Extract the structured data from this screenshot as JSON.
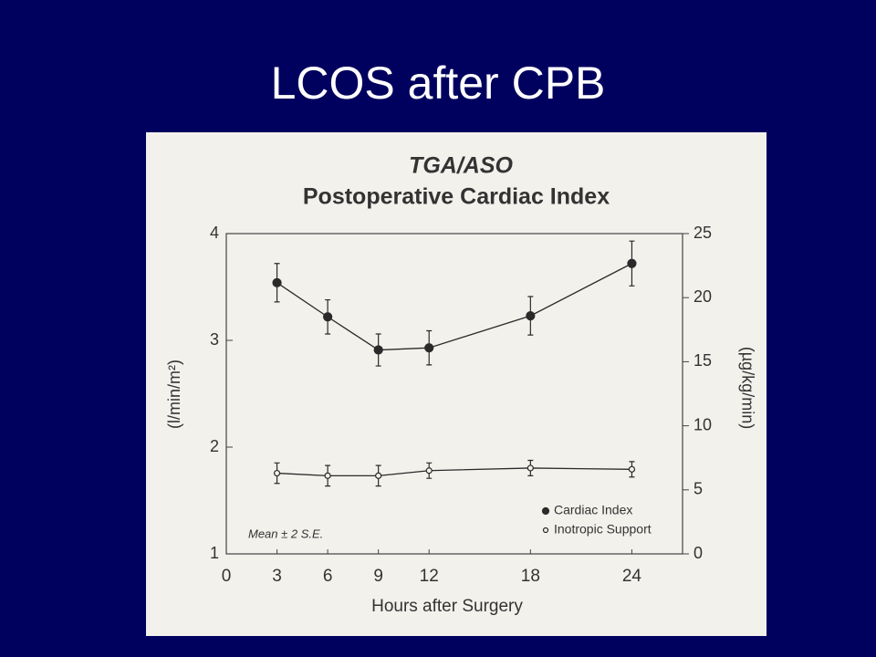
{
  "slide_title": "LCOS after CPB",
  "chart_data": {
    "type": "line",
    "title": "TGA/ASO",
    "subtitle": "Postoperative Cardiac Index",
    "xlabel": "Hours after Surgery",
    "ylabel": "(l/min/m²)",
    "y2label": "(µg/kg/min)",
    "annotation": "Mean ± 2 S.E.",
    "x": [
      3,
      6,
      9,
      12,
      18,
      24
    ],
    "xlim": [
      0,
      27
    ],
    "xticks": [
      0,
      3,
      6,
      9,
      12,
      18,
      24
    ],
    "ylim": [
      1,
      4
    ],
    "yticks": [
      1,
      2,
      3,
      4
    ],
    "y2lim": [
      0,
      25
    ],
    "y2ticks": [
      0,
      5,
      10,
      15,
      20,
      25
    ],
    "legend": "lower right",
    "series": [
      {
        "name": "Cardiac Index",
        "color": "#2a2a2a",
        "marker": "filled",
        "values": [
          3.54,
          3.22,
          2.91,
          2.93,
          3.23,
          3.72
        ],
        "errors": [
          0.18,
          0.16,
          0.15,
          0.16,
          0.18,
          0.21
        ]
      },
      {
        "name": "Inotropic Support",
        "color": "#2a2a2a",
        "marker": "open",
        "axis": "y2",
        "values": [
          6.3,
          6.1,
          6.1,
          6.5,
          6.7,
          6.6
        ],
        "errors": [
          0.8,
          0.8,
          0.8,
          0.6,
          0.6,
          0.6
        ]
      }
    ]
  }
}
